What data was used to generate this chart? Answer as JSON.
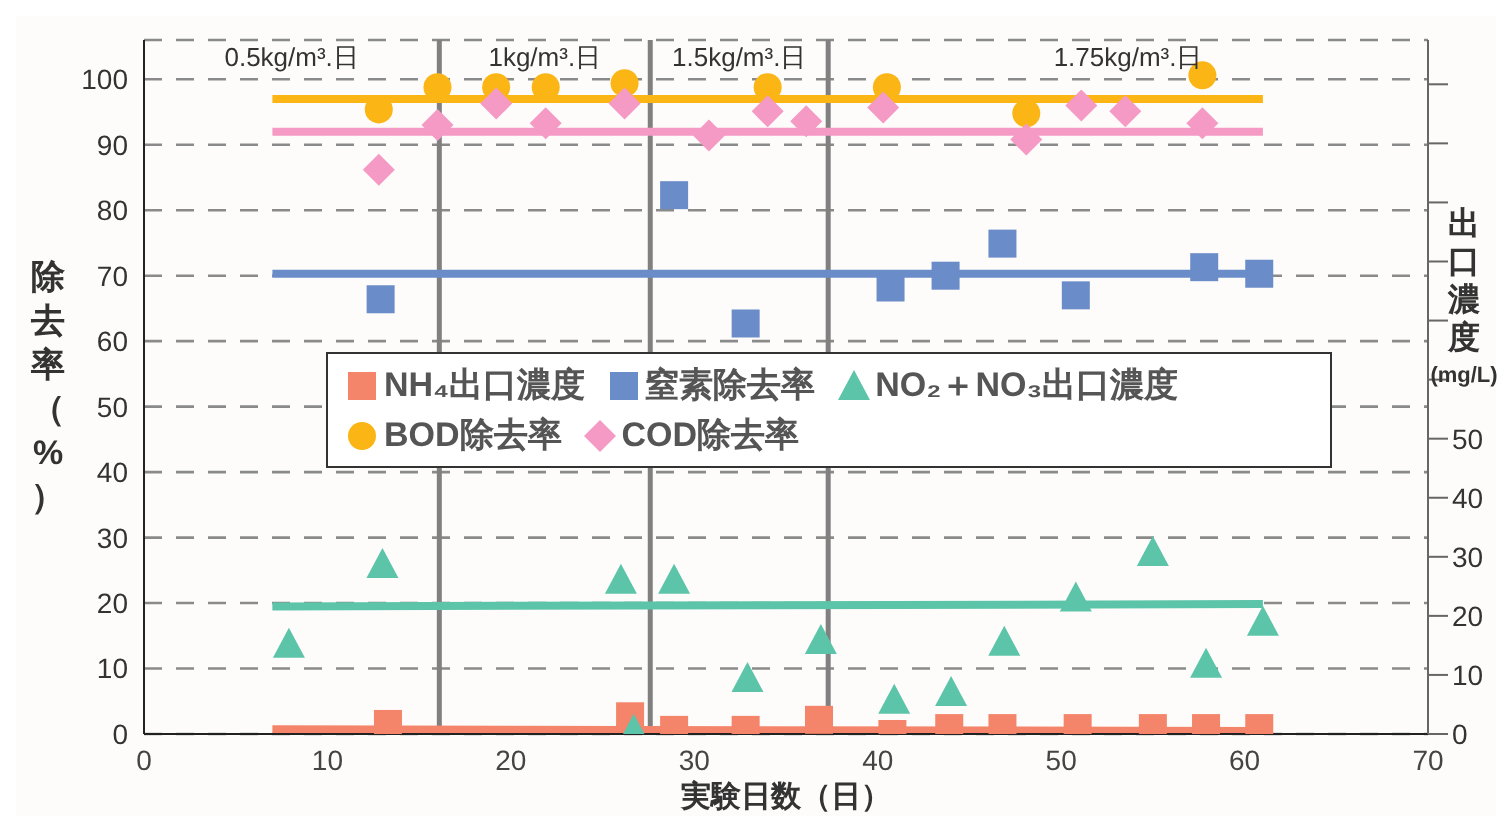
{
  "chart_data": {
    "type": "scatter",
    "xlabel": "実験日数（日）",
    "ylabel": "除去率（%）",
    "y2label": "出口濃度(mg/L)",
    "xlim": [
      0,
      70
    ],
    "xticks": [
      0,
      10,
      20,
      30,
      40,
      50,
      60,
      70
    ],
    "ylim": [
      0,
      106
    ],
    "yticks": [
      0,
      10,
      20,
      30,
      40,
      50,
      60,
      70,
      80,
      90,
      100
    ],
    "y2lim": [
      0,
      117.5
    ],
    "y2ticks": [
      0,
      10,
      20,
      30,
      40,
      50,
      {
        "value": 60,
        "label": null
      },
      {
        "value": 70,
        "label": null
      },
      {
        "value": 80,
        "label": null
      },
      {
        "value": 90,
        "label": null
      },
      {
        "value": 100,
        "label": null
      },
      {
        "value": 110,
        "label": null
      }
    ],
    "grid": "y",
    "legend": "center",
    "ref_lines": [
      {
        "axis": "x",
        "value": 16.1,
        "color": "#808080"
      },
      {
        "axis": "x",
        "value": 27.6,
        "color": "#808080"
      },
      {
        "axis": "x",
        "value": 37.3,
        "color": "#808080"
      }
    ],
    "annotations": [
      "0.5kg/m³.日",
      "1kg/m³.日",
      "1.5kg/m³.日",
      "1.75kg/m³.日"
    ],
    "series": [
      {
        "name": "NH₄出口濃度",
        "marker": "square",
        "axis": "y2",
        "color": "#f4846a",
        "x": [
          13.3,
          26.5,
          28.9,
          32.8,
          36.8,
          40.8,
          43.9,
          46.8,
          50.9,
          55,
          57.9,
          60.8
        ],
        "values": [
          1.7,
          3,
          0.7,
          0.7,
          2.4,
          0,
          1,
          1,
          1,
          1,
          1,
          1
        ]
      },
      {
        "name": "窒素除去率",
        "marker": "square",
        "color": "#6a8cc8",
        "x": [
          12.9,
          28.9,
          32.8,
          40.7,
          43.7,
          46.8,
          50.8,
          57.8,
          60.8
        ],
        "values": [
          66.4,
          82.3,
          62.7,
          68.2,
          70,
          74.9,
          67,
          71.3,
          70.3
        ]
      },
      {
        "name": "NO₂＋NO₃出口濃度",
        "marker": "triangle",
        "axis": "y2",
        "color": "#5cc4a8",
        "x": [
          7.9,
          13,
          26,
          28.9,
          26.7,
          32.9,
          36.9,
          40.9,
          44,
          46.9,
          50.8,
          55,
          57.9,
          61
        ],
        "values": [
          15.3,
          28.8,
          26.1,
          26.1,
          0.7,
          9.5,
          15.9,
          5.8,
          7.1,
          15.6,
          23.1,
          30.8,
          11.9,
          19
        ]
      },
      {
        "name": "BOD除去率",
        "marker": "circle",
        "color": "#fbb515",
        "x": [
          12.8,
          16,
          19.2,
          21.9,
          26.2,
          34,
          40.5,
          48.1,
          57.7
        ],
        "values": [
          95.4,
          98.8,
          98.8,
          98.8,
          99.4,
          98.8,
          98.8,
          94.8,
          100.6
        ]
      },
      {
        "name": "COD除去率",
        "marker": "diamond",
        "color": "#f59ac4",
        "x": [
          12.8,
          16,
          19.2,
          21.9,
          26.2,
          30.8,
          34,
          36.1,
          40.3,
          48.1,
          51.1,
          53.5,
          57.7
        ],
        "values": [
          86.2,
          93,
          96.3,
          93.3,
          96.3,
          91.4,
          95.1,
          93.6,
          95.7,
          90.8,
          96,
          95.1,
          93.3
        ]
      },
      {
        "type": "line",
        "axis": "y2",
        "color": "#f4846a",
        "x": [
          7,
          61
        ],
        "values": [
          0.8,
          0.5
        ]
      },
      {
        "type": "line",
        "color": "#6a8cc8",
        "x": [
          7,
          61
        ],
        "values": [
          70.3,
          70.3
        ]
      },
      {
        "type": "line",
        "axis": "y2",
        "color": "#5cc4a8",
        "x": [
          7,
          61
        ],
        "values": [
          21.6,
          22
        ]
      },
      {
        "type": "line",
        "color": "#fbb515",
        "x": [
          7,
          61
        ],
        "values": [
          97,
          97
        ]
      },
      {
        "type": "line",
        "color": "#f59ac4",
        "x": [
          7,
          61
        ],
        "values": [
          92,
          92
        ]
      }
    ]
  }
}
